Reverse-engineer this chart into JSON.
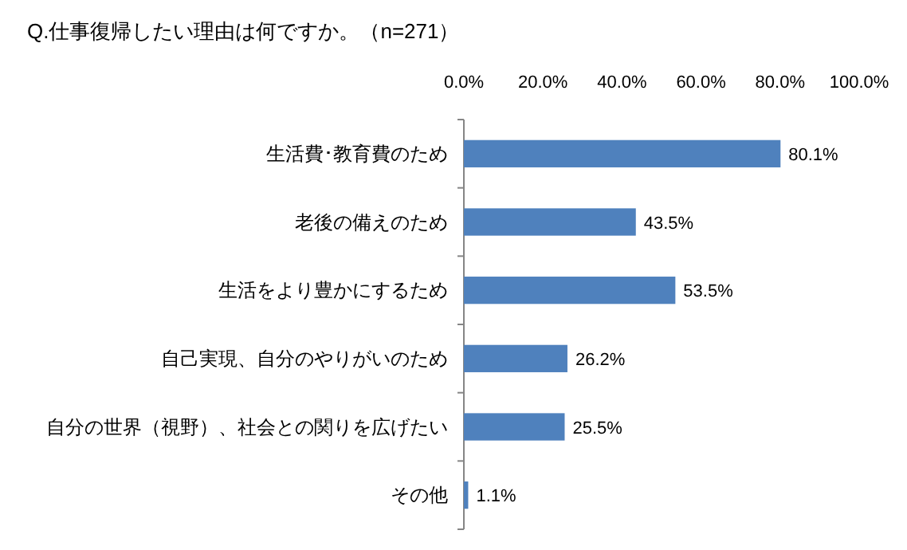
{
  "chart_data": {
    "type": "bar",
    "orientation": "horizontal",
    "title": "Q.仕事復帰したい理由は何ですか。（n=271）",
    "categories": [
      "生活費･教育費のため",
      "老後の備えのため",
      "生活をより豊かにするため",
      "自己実現、自分のやりがいのため",
      "自分の世界（視野）、社会との関りを広げたい",
      "その他"
    ],
    "values": [
      80.1,
      43.5,
      53.5,
      26.2,
      25.5,
      1.1
    ],
    "value_labels": [
      "80.1%",
      "43.5%",
      "53.5%",
      "26.2%",
      "25.5%",
      "1.1%"
    ],
    "color": "#4f81bd",
    "xlim": [
      0,
      100
    ],
    "xticks": [
      {
        "value": 0,
        "label": "0.0%"
      },
      {
        "value": 20,
        "label": "20.0%"
      },
      {
        "value": 40,
        "label": "40.0%"
      },
      {
        "value": 60,
        "label": "60.0%"
      },
      {
        "value": 80,
        "label": "80.0%"
      },
      {
        "value": 100,
        "label": "100.0%"
      }
    ],
    "grid": false
  }
}
